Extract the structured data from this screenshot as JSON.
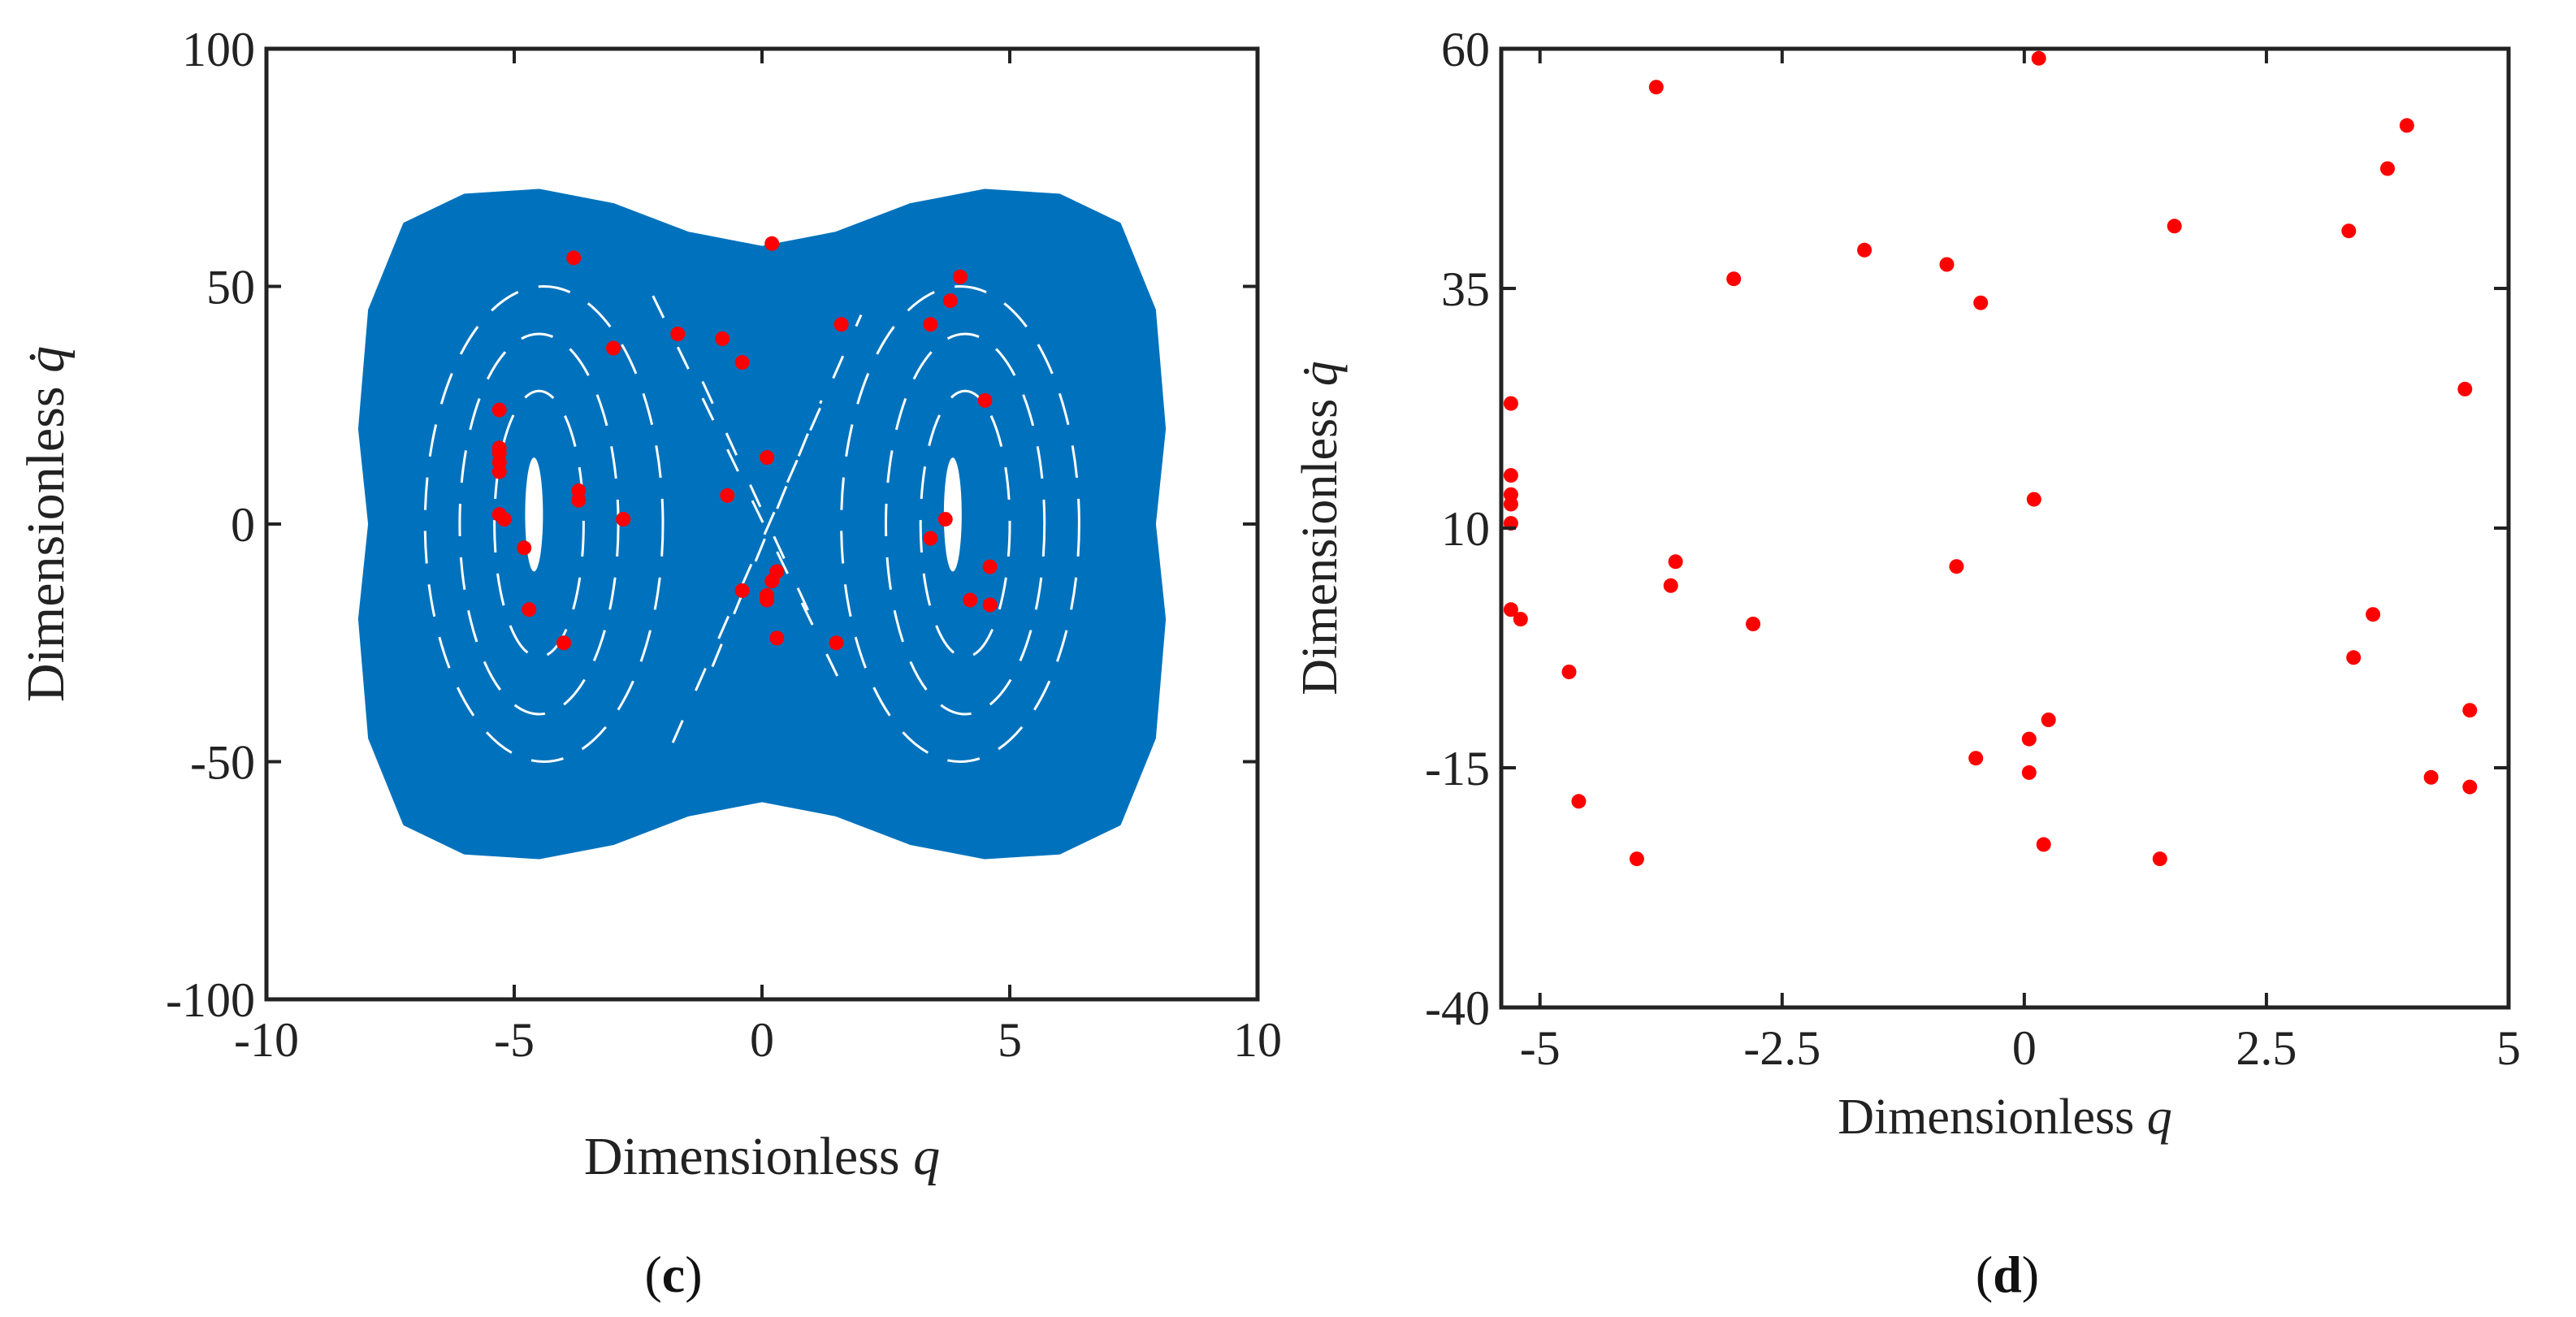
{
  "chart_data": [
    {
      "id": "c",
      "type": "scatter",
      "caption": {
        "open": "(",
        "letter": "c",
        "close": ")"
      },
      "xlabel": {
        "text": "Dimensionless ",
        "var": "q"
      },
      "ylabel": {
        "text": "Dimensionless ",
        "var": "q̇"
      },
      "xlim": [
        -10,
        10
      ],
      "ylim": [
        -100,
        100
      ],
      "xticks": [
        -10,
        -5,
        0,
        5,
        10
      ],
      "xticklabels": [
        "-10",
        "-5",
        "0",
        "5",
        "10"
      ],
      "yticks": [
        -100,
        -50,
        0,
        50,
        100
      ],
      "yticklabels": [
        "-100",
        "-50",
        "0",
        "50",
        "100"
      ],
      "series": [
        {
          "name": "phase trajectory",
          "style": "filled-region",
          "color": "#0072BD",
          "outline": [
            [
              -7.9,
              0
            ],
            [
              -8.1,
              20
            ],
            [
              -7.9,
              45
            ],
            [
              -7.2,
              63
            ],
            [
              -6.0,
              69
            ],
            [
              -4.5,
              70
            ],
            [
              -3.0,
              67
            ],
            [
              -1.5,
              61
            ],
            [
              0.0,
              58
            ],
            [
              1.5,
              61
            ],
            [
              3.0,
              67
            ],
            [
              4.5,
              70
            ],
            [
              6.0,
              69
            ],
            [
              7.2,
              63
            ],
            [
              7.9,
              45
            ],
            [
              8.1,
              20
            ],
            [
              7.9,
              0
            ],
            [
              8.1,
              -20
            ],
            [
              7.9,
              -45
            ],
            [
              7.2,
              -63
            ],
            [
              6.0,
              -69
            ],
            [
              4.5,
              -70
            ],
            [
              3.0,
              -67
            ],
            [
              1.5,
              -61
            ],
            [
              0.0,
              -58
            ],
            [
              -1.5,
              -61
            ],
            [
              -3.0,
              -67
            ],
            [
              -4.5,
              -70
            ],
            [
              -6.0,
              -69
            ],
            [
              -7.2,
              -63
            ],
            [
              -7.9,
              -45
            ],
            [
              -8.1,
              -20
            ]
          ]
        },
        {
          "name": "sampled points",
          "style": "markers",
          "color": "#ff0000",
          "points": [
            [
              -3.8,
              56
            ],
            [
              0.2,
              59
            ],
            [
              -1.7,
              40
            ],
            [
              -0.8,
              39
            ],
            [
              -0.4,
              34
            ],
            [
              -3.0,
              37
            ],
            [
              1.6,
              42
            ],
            [
              3.4,
              42
            ],
            [
              3.8,
              47
            ],
            [
              4.0,
              52
            ],
            [
              4.5,
              26
            ],
            [
              -5.3,
              24
            ],
            [
              -5.3,
              16
            ],
            [
              -5.3,
              15
            ],
            [
              -5.3,
              13
            ],
            [
              -5.3,
              11
            ],
            [
              -5.3,
              2
            ],
            [
              -5.2,
              1
            ],
            [
              -4.8,
              -5
            ],
            [
              -3.7,
              7
            ],
            [
              -3.7,
              5
            ],
            [
              -2.8,
              1
            ],
            [
              -4.7,
              -18
            ],
            [
              -4.0,
              -25
            ],
            [
              0.1,
              14
            ],
            [
              -0.7,
              6
            ],
            [
              3.4,
              -3
            ],
            [
              3.7,
              1
            ],
            [
              4.6,
              -9
            ],
            [
              4.2,
              -16
            ],
            [
              4.6,
              -17
            ],
            [
              0.3,
              -10
            ],
            [
              0.2,
              -12
            ],
            [
              0.1,
              -15
            ],
            [
              0.1,
              -16
            ],
            [
              -0.4,
              -14
            ],
            [
              0.3,
              -24
            ],
            [
              1.5,
              -25
            ]
          ]
        }
      ]
    },
    {
      "id": "d",
      "type": "scatter",
      "caption": {
        "open": "(",
        "letter": "d",
        "close": ")"
      },
      "xlabel": {
        "text": "Dimensionless ",
        "var": "q"
      },
      "ylabel": {
        "text": "Dimensionless ",
        "var": "q̇"
      },
      "xlim": [
        -5.4,
        5
      ],
      "ylim": [
        -40,
        60
      ],
      "xticks": [
        -5,
        -2.5,
        0,
        2.5,
        5
      ],
      "xticklabels": [
        "-5",
        "-2.5",
        "0",
        "2.5",
        "5"
      ],
      "yticks": [
        -40,
        -15,
        10,
        35,
        60
      ],
      "yticklabels": [
        "-40",
        "-15",
        "10",
        "35",
        "60"
      ],
      "series": [
        {
          "name": "sampled points",
          "style": "markers",
          "color": "#ff0000",
          "points": [
            [
              0.15,
              59
            ],
            [
              -3.8,
              56
            ],
            [
              3.95,
              52
            ],
            [
              3.75,
              47.5
            ],
            [
              1.55,
              41.5
            ],
            [
              3.35,
              41
            ],
            [
              -1.65,
              39
            ],
            [
              -0.8,
              37.5
            ],
            [
              -3.0,
              36
            ],
            [
              -0.45,
              33.5
            ],
            [
              4.55,
              24.5
            ],
            [
              -5.3,
              23
            ],
            [
              -5.3,
              15.5
            ],
            [
              -5.3,
              13.5
            ],
            [
              -5.3,
              12.5
            ],
            [
              -5.3,
              10.5
            ],
            [
              0.1,
              13
            ],
            [
              -3.6,
              6.5
            ],
            [
              -3.65,
              4
            ],
            [
              -0.7,
              6
            ],
            [
              -5.3,
              1.5
            ],
            [
              -5.2,
              0.5
            ],
            [
              -2.8,
              0
            ],
            [
              3.6,
              1
            ],
            [
              3.4,
              -3.5
            ],
            [
              -4.7,
              -5
            ],
            [
              4.6,
              -9
            ],
            [
              0.25,
              -10
            ],
            [
              0.05,
              -12
            ],
            [
              -0.5,
              -14
            ],
            [
              0.05,
              -15.5
            ],
            [
              4.2,
              -16
            ],
            [
              4.6,
              -17
            ],
            [
              -4.6,
              -18.5
            ],
            [
              0.2,
              -23
            ],
            [
              -4.0,
              -24.5
            ],
            [
              1.4,
              -24.5
            ]
          ]
        }
      ]
    }
  ]
}
